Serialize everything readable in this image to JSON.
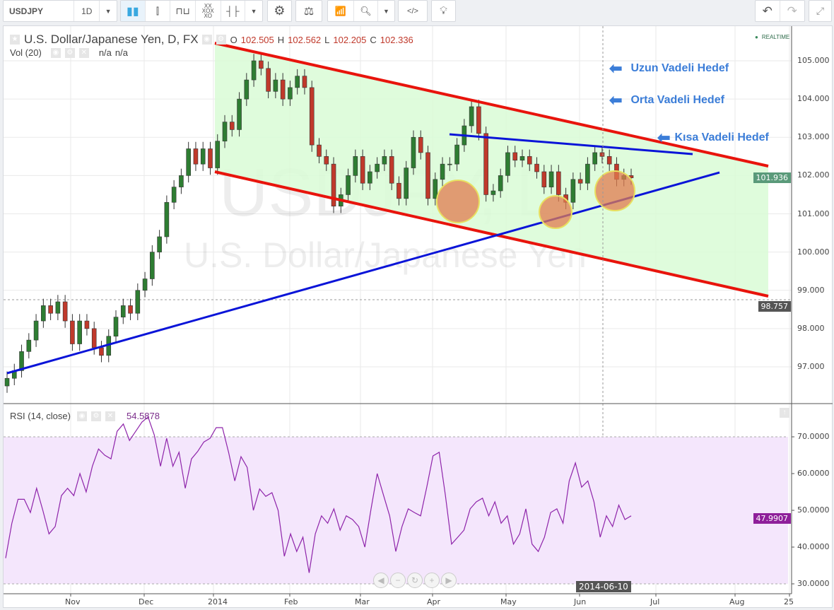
{
  "toolbar": {
    "symbol": "USDJPY",
    "interval": "1D",
    "icons": [
      "candles-icon",
      "hollow-candles-icon",
      "line-break-icon",
      "point-figure-icon",
      "bars-icon",
      "chevron-down-icon",
      "gear-icon",
      "compare-scales-icon",
      "indicators-icon",
      "search-icon",
      "chevron-down-icon",
      "embed-code-icon",
      "lightbulb-icon"
    ],
    "right_icons": [
      "undo-icon",
      "redo-icon",
      "fullscreen-icon"
    ]
  },
  "header": {
    "title": "U.S. Dollar/Japanese Yen, D, FX",
    "o_label": "O",
    "o": "102.505",
    "h_label": "H",
    "h": "102.562",
    "l_label": "L",
    "l": "102.205",
    "c_label": "C",
    "c": "102.336",
    "vol_label": "Vol (20)",
    "vol_a": "n/a",
    "vol_b": "n/a",
    "realtime": "REALTIME"
  },
  "watermark": {
    "line1": "USDJPY, D",
    "line2": "U.S. Dollar/Japanese Yen"
  },
  "annotations": {
    "long": "Uzun Vadeli Hedef",
    "mid": "Orta Vadeli Hedef",
    "short": "Kısa Vadeli Hedef"
  },
  "colors": {
    "up": "#2e7d32",
    "down": "#c0392b",
    "channel": "#e8140c",
    "trend": "#0a14d8",
    "fill": "#d9fcd6",
    "rsi": "#8e24aa",
    "rsi_band": "#f4e6fc",
    "target_circle": "#e07b4f"
  },
  "chart_data": [
    {
      "type": "candlestick",
      "symbol": "USDJPY",
      "ylim": [
        96.2,
        105.9
      ],
      "yticks": [
        "105.000",
        "104.000",
        "103.000",
        "102.000",
        "101.000",
        "100.000",
        "99.000",
        "98.000",
        "97.000"
      ],
      "xticks": [
        "Nov",
        "Dec",
        "2014",
        "Feb",
        "Mar",
        "Apr",
        "May",
        "Jun",
        "Jul",
        "Aug",
        "25"
      ],
      "last_price": "101.936",
      "marker_price": "98.757",
      "crosshair_date": "2014-06-10",
      "close": [
        96.7,
        96.9,
        97.4,
        97.7,
        98.2,
        98.6,
        98.4,
        98.7,
        98.2,
        97.6,
        98.2,
        98.0,
        97.5,
        97.3,
        97.8,
        98.3,
        98.6,
        98.4,
        99.0,
        99.3,
        100.0,
        100.4,
        101.3,
        101.7,
        102.0,
        102.7,
        102.3,
        102.7,
        102.2,
        102.9,
        103.4,
        103.2,
        104.0,
        104.5,
        105.0,
        104.8,
        104.2,
        104.5,
        104.0,
        104.3,
        104.6,
        104.3,
        102.8,
        102.5,
        102.3,
        101.2,
        101.5,
        102.0,
        102.5,
        101.8,
        102.1,
        102.3,
        102.5,
        101.8,
        101.4,
        102.2,
        103.0,
        102.6,
        101.4,
        101.9,
        102.3,
        102.3,
        102.8,
        103.3,
        103.8,
        103.1,
        101.5,
        101.6,
        102.0,
        102.6,
        102.4,
        102.5,
        102.3,
        102.1,
        101.7,
        102.1,
        101.5,
        101.3,
        101.9,
        101.8,
        102.3,
        102.6,
        102.5,
        102.3,
        101.9,
        102.0,
        101.94
      ]
    },
    {
      "type": "line",
      "title": "RSI (14, close)",
      "value_label": "54.5878",
      "last": "47.9907",
      "ylim": [
        27,
        76
      ],
      "yticks": [
        "70.0000",
        "60.0000",
        "50.0000",
        "40.0000",
        "30.0000"
      ],
      "band": [
        30,
        70
      ],
      "values": [
        37,
        46.5,
        53,
        53,
        49.4,
        56,
        50,
        43.6,
        45.6,
        54,
        56,
        54,
        60,
        55,
        62,
        66.7,
        65,
        64,
        71.5,
        73.5,
        69,
        71.5,
        74,
        75.4,
        70.5,
        62,
        69.6,
        62,
        65.8,
        56,
        64,
        66,
        68.6,
        69.6,
        72.5,
        72.5,
        65.8,
        58,
        64.6,
        61.7,
        50,
        55.8,
        53.8,
        54.8,
        50,
        37.5,
        43.6,
        38.8,
        42.7,
        33,
        43.6,
        48.5,
        46.5,
        50.4,
        44.6,
        48.5,
        47.5,
        45.6,
        40,
        50.4,
        60,
        54.2,
        48.5,
        38.8,
        45.6,
        50.4,
        49.4,
        48.5,
        56.3,
        64.8,
        65.8,
        54.2,
        40.8,
        42.7,
        44.6,
        50.4,
        52.3,
        53.3,
        48.5,
        52.3,
        46.5,
        48.5,
        40.8,
        43.6,
        50.4,
        40.8,
        38.8,
        42.7,
        49.4,
        50.4,
        46.5,
        58,
        62.9,
        56.3,
        58,
        52.3,
        42.7,
        48.5,
        45.6,
        51.4,
        47.5,
        48.5
      ]
    }
  ]
}
